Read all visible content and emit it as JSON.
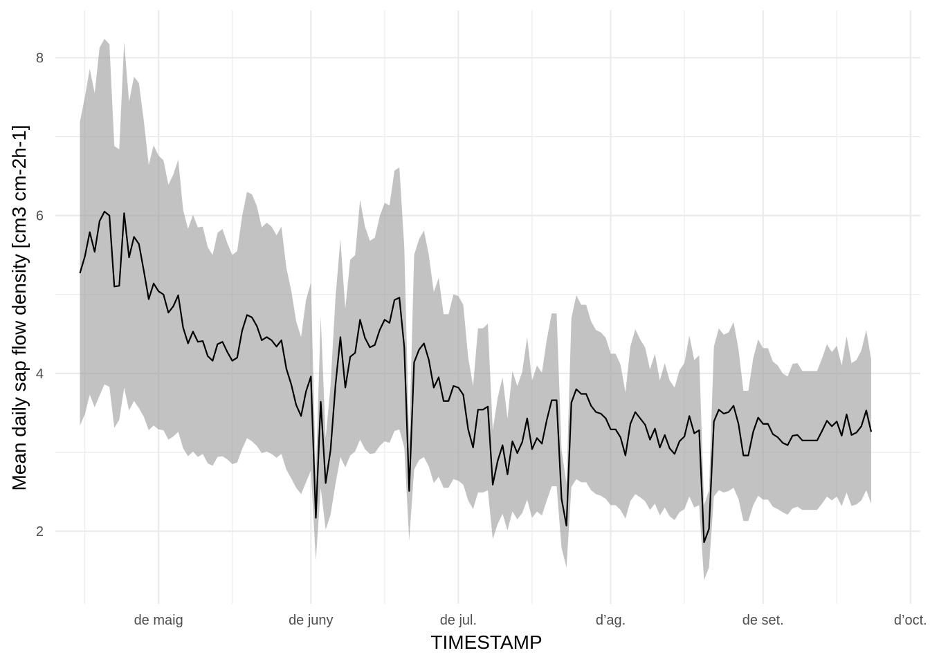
{
  "chart_data": {
    "type": "line",
    "title": "",
    "xlabel": "TIMESTAMP",
    "ylabel": "Mean daily sap flow density [cm3 cm-2h-1]",
    "x_start": "2023-04-15",
    "x_range": [
      "2023-04-10",
      "2023-10-03"
    ],
    "ylim": [
      1.08,
      8.6
    ],
    "y_ticks": [
      2,
      4,
      6,
      8
    ],
    "y_minor_ticks": [
      3,
      5,
      7
    ],
    "x_ticks": [
      {
        "date": "2023-05-01",
        "label": "de maig"
      },
      {
        "date": "2023-06-01",
        "label": "de juny"
      },
      {
        "date": "2023-07-01",
        "label": "de jul."
      },
      {
        "date": "2023-08-01",
        "label": "d’ag."
      },
      {
        "date": "2023-09-01",
        "label": "de set."
      },
      {
        "date": "2023-10-01",
        "label": "d’oct."
      }
    ],
    "x_minor_ticks": [
      "2023-04-16",
      "2023-05-16",
      "2023-06-16",
      "2023-07-16",
      "2023-08-16",
      "2023-09-16"
    ],
    "grid": true,
    "legend": "none",
    "series": [
      {
        "values": [
          5.27,
          5.48,
          5.79,
          5.54,
          5.93,
          6.05,
          6.0,
          5.1,
          5.11,
          6.03,
          5.47,
          5.73,
          5.64,
          5.3,
          4.94,
          5.14,
          5.04,
          5.0,
          4.77,
          4.85,
          4.99,
          4.58,
          4.38,
          4.53,
          4.4,
          4.41,
          4.22,
          4.16,
          4.37,
          4.4,
          4.27,
          4.16,
          4.2,
          4.54,
          4.74,
          4.71,
          4.6,
          4.42,
          4.46,
          4.42,
          4.34,
          4.42,
          4.06,
          3.86,
          3.6,
          3.46,
          3.77,
          3.96,
          2.17,
          3.64,
          2.61,
          3.03,
          3.85,
          4.46,
          3.82,
          4.21,
          4.26,
          4.68,
          4.45,
          4.33,
          4.36,
          4.55,
          4.68,
          4.64,
          4.93,
          4.96,
          4.33,
          2.51,
          4.14,
          4.3,
          4.38,
          4.17,
          3.82,
          3.95,
          3.65,
          3.65,
          3.84,
          3.82,
          3.73,
          3.29,
          3.06,
          3.54,
          3.54,
          3.58,
          2.59,
          2.89,
          3.09,
          2.72,
          3.14,
          2.99,
          3.13,
          3.43,
          3.04,
          3.18,
          3.11,
          3.41,
          3.66,
          3.66,
          2.41,
          2.07,
          3.63,
          3.8,
          3.74,
          3.74,
          3.59,
          3.51,
          3.49,
          3.43,
          3.29,
          3.29,
          3.19,
          2.96,
          3.36,
          3.51,
          3.43,
          3.35,
          3.16,
          3.3,
          3.06,
          3.22,
          3.05,
          2.98,
          3.14,
          3.2,
          3.46,
          3.24,
          3.28,
          1.86,
          2.03,
          3.39,
          3.54,
          3.49,
          3.51,
          3.59,
          3.36,
          2.96,
          2.96,
          3.26,
          3.44,
          3.36,
          3.36,
          3.23,
          3.19,
          3.12,
          3.09,
          3.21,
          3.22,
          3.15,
          3.15,
          3.15,
          3.15,
          3.27,
          3.4,
          3.33,
          3.39,
          3.21,
          3.48,
          3.22,
          3.25,
          3.33,
          3.53,
          3.26
        ],
        "lower": [
          3.34,
          3.48,
          3.73,
          3.57,
          3.72,
          3.86,
          3.83,
          3.31,
          3.41,
          3.82,
          3.53,
          3.65,
          3.56,
          3.45,
          3.28,
          3.34,
          3.29,
          3.28,
          3.16,
          3.2,
          3.26,
          3.05,
          2.95,
          3.01,
          2.94,
          2.98,
          2.86,
          2.83,
          2.94,
          2.95,
          2.91,
          2.85,
          2.87,
          3.04,
          3.18,
          3.14,
          3.08,
          2.99,
          3.01,
          2.98,
          2.93,
          2.98,
          2.78,
          2.67,
          2.55,
          2.47,
          2.62,
          2.77,
          1.63,
          2.55,
          2.02,
          2.21,
          2.6,
          2.94,
          2.81,
          2.96,
          3.01,
          3.16,
          3.04,
          2.98,
          2.99,
          3.08,
          3.14,
          3.12,
          3.27,
          3.29,
          3.06,
          1.88,
          2.78,
          2.9,
          2.94,
          2.82,
          2.61,
          2.69,
          2.55,
          2.55,
          2.66,
          2.64,
          2.59,
          2.39,
          2.28,
          2.49,
          2.49,
          2.52,
          1.9,
          2.09,
          2.22,
          2.01,
          2.25,
          2.15,
          2.23,
          2.4,
          2.17,
          2.25,
          2.2,
          2.39,
          2.57,
          2.57,
          1.79,
          1.54,
          2.56,
          2.66,
          2.62,
          2.62,
          2.52,
          2.47,
          2.45,
          2.41,
          2.33,
          2.33,
          2.27,
          2.16,
          2.38,
          2.47,
          2.43,
          2.38,
          2.27,
          2.35,
          2.2,
          2.3,
          2.19,
          2.14,
          2.24,
          2.28,
          2.44,
          2.3,
          2.33,
          1.38,
          1.54,
          2.44,
          2.52,
          2.49,
          2.51,
          2.55,
          2.41,
          2.13,
          2.13,
          2.33,
          2.45,
          2.4,
          2.4,
          2.31,
          2.28,
          2.24,
          2.21,
          2.29,
          2.31,
          2.27,
          2.27,
          2.27,
          2.27,
          2.35,
          2.44,
          2.39,
          2.44,
          2.32,
          2.49,
          2.32,
          2.34,
          2.39,
          2.52,
          2.35
        ],
        "upper": [
          7.19,
          7.5,
          7.86,
          7.55,
          8.13,
          8.24,
          8.17,
          6.88,
          6.84,
          8.2,
          7.44,
          7.76,
          7.68,
          7.2,
          6.64,
          6.89,
          6.76,
          6.7,
          6.39,
          6.52,
          6.71,
          6.07,
          5.83,
          6.01,
          5.85,
          5.86,
          5.6,
          5.5,
          5.78,
          5.83,
          5.65,
          5.5,
          5.55,
          5.99,
          6.3,
          6.27,
          6.12,
          5.85,
          5.91,
          5.86,
          5.75,
          5.86,
          5.34,
          5.05,
          4.66,
          4.46,
          4.93,
          5.15,
          2.71,
          4.72,
          3.18,
          3.85,
          4.96,
          5.7,
          4.82,
          5.44,
          5.5,
          6.2,
          5.86,
          5.68,
          5.72,
          5.99,
          6.16,
          6.13,
          6.57,
          6.61,
          5.6,
          3.13,
          5.5,
          5.7,
          5.81,
          5.5,
          5.03,
          5.21,
          4.75,
          4.75,
          5.0,
          4.98,
          4.87,
          4.2,
          3.84,
          4.57,
          4.57,
          4.63,
          3.28,
          3.69,
          3.95,
          3.43,
          4.03,
          3.84,
          4.02,
          4.46,
          3.91,
          4.1,
          4.01,
          4.43,
          4.76,
          4.76,
          3.03,
          2.6,
          4.7,
          4.99,
          4.87,
          4.87,
          4.66,
          4.55,
          4.52,
          4.45,
          4.25,
          4.25,
          4.11,
          3.76,
          4.34,
          4.56,
          4.43,
          4.33,
          4.05,
          4.25,
          3.91,
          4.13,
          3.91,
          3.82,
          4.04,
          4.13,
          4.48,
          4.17,
          4.23,
          2.33,
          2.52,
          4.34,
          4.57,
          4.49,
          4.52,
          4.65,
          4.31,
          3.78,
          3.78,
          4.19,
          4.43,
          4.32,
          4.32,
          4.15,
          4.1,
          4.0,
          3.96,
          4.12,
          4.13,
          4.03,
          4.03,
          4.03,
          4.03,
          4.19,
          4.37,
          4.27,
          4.35,
          4.1,
          4.47,
          4.13,
          4.17,
          4.29,
          4.55,
          4.18
        ]
      }
    ]
  }
}
